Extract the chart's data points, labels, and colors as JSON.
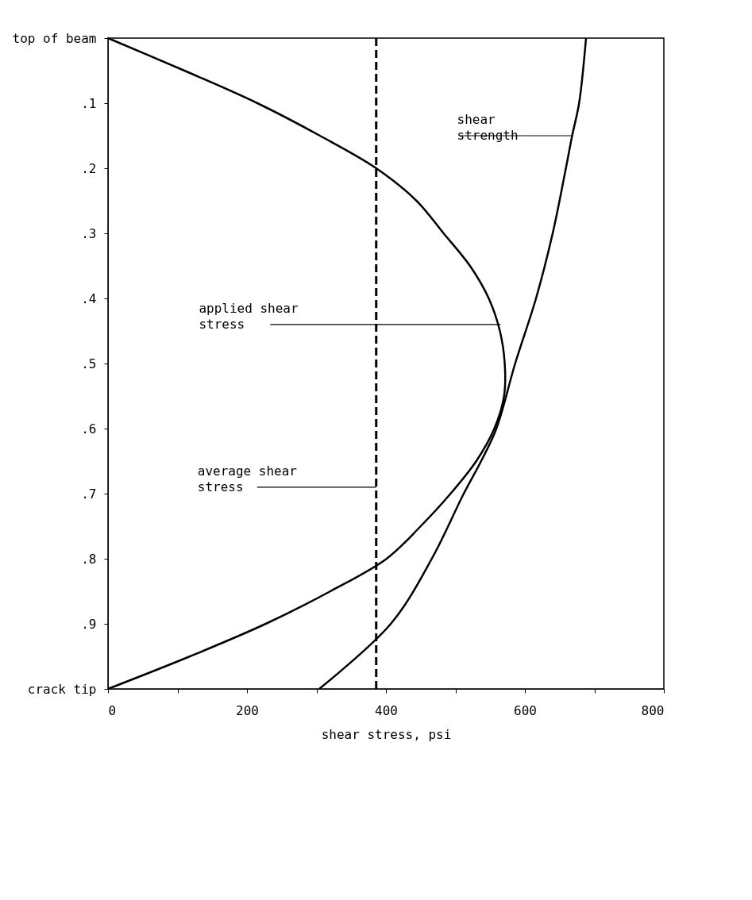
{
  "chart_data": {
    "type": "line",
    "xlabel": "shear stress, psi",
    "series": [
      {
        "color": "#000000",
        "x": [
          0,
          110,
          215,
          305,
          386,
          444,
          483,
          521,
          548,
          564,
          571,
          570,
          556,
          530,
          493,
          450,
          401,
          320,
          227,
          118,
          0
        ],
        "values": [
          0,
          0.05,
          0.1,
          0.15,
          0.2,
          0.25,
          0.3,
          0.35,
          0.4,
          0.45,
          0.5,
          0.55,
          0.6,
          0.65,
          0.7,
          0.75,
          0.8,
          0.85,
          0.9,
          0.95,
          1.0
        ]
      },
      {
        "color": "#000000",
        "x": [
          688,
          678,
          668,
          659,
          640,
          616,
          586,
          559,
          537,
          512,
          466,
          407,
          304
        ],
        "values": [
          0,
          0.1,
          0.15,
          0.2,
          0.3,
          0.4,
          0.5,
          0.6,
          0.65,
          0.7,
          0.8,
          0.9,
          1.0
        ]
      }
    ],
    "ref_lines": [
      {
        "axis": "x",
        "value": 386,
        "color": "#000000",
        "line_style": "dashed"
      }
    ],
    "annotations": [
      {
        "text": "shear strength",
        "x": 668,
        "y": 0.15
      },
      {
        "text": "applied shear stress",
        "x": 565,
        "y": 0.44
      },
      {
        "text": "average shear stress",
        "x": 386,
        "y": 0.69
      }
    ],
    "xlim": [
      0,
      800
    ],
    "xticks": [
      0,
      {
        "value": 100,
        "label": null
      },
      200,
      {
        "value": 300,
        "label": null
      },
      400,
      {
        "value": 500,
        "label": null
      },
      600,
      {
        "value": 700,
        "label": null
      },
      800
    ],
    "ylim": [
      1,
      0
    ],
    "yticks": [
      {
        "value": 0,
        "label": "top of beam"
      },
      {
        "value": 0.1,
        "label": ".1"
      },
      {
        "value": 0.2,
        "label": ".2"
      },
      {
        "value": 0.3,
        "label": ".3"
      },
      {
        "value": 0.4,
        "label": ".4"
      },
      {
        "value": 0.5,
        "label": ".5"
      },
      {
        "value": 0.6,
        "label": ".6"
      },
      {
        "value": 0.7,
        "label": ".7"
      },
      {
        "value": 0.8,
        "label": ".8"
      },
      {
        "value": 0.9,
        "label": ".9"
      },
      {
        "value": 1.0,
        "label": "crack tip"
      }
    ],
    "grid": false,
    "line_style": "solid",
    "marker": "none"
  }
}
